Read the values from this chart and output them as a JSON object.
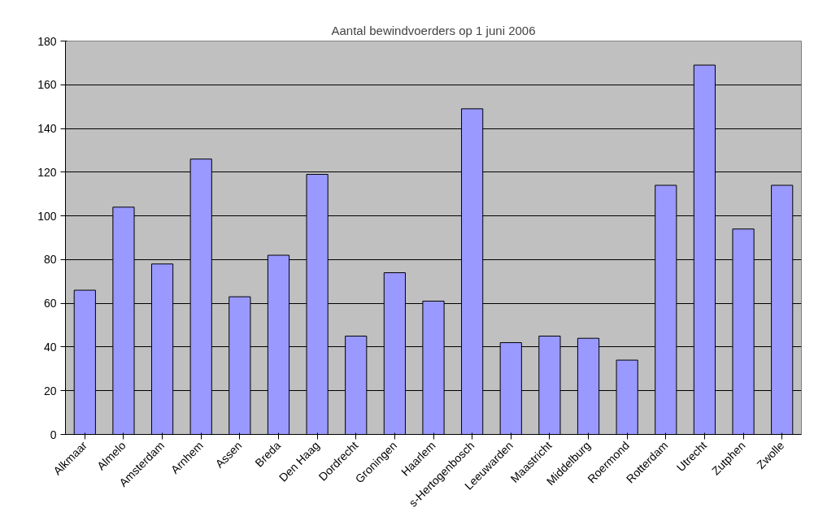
{
  "chart_data": {
    "type": "bar",
    "title": "Aantal bewindvoerders op 1 juni 2006",
    "categories": [
      "Alkmaar",
      "Almelo",
      "Amsterdam",
      "Arnhem",
      "Assen",
      "Breda",
      "Den Haag",
      "Dordrecht",
      "Groningen",
      "Haarlem",
      "s-Hertogenbosch",
      "Leeuwarden",
      "Maastricht",
      "Middelburg",
      "Roermond",
      "Rotterdam",
      "Utrecht",
      "Zutphen",
      "Zwolle"
    ],
    "values": [
      66,
      104,
      78,
      126,
      63,
      82,
      119,
      45,
      74,
      61,
      149,
      42,
      45,
      44,
      34,
      114,
      169,
      94,
      114
    ],
    "color": "#9999ff",
    "ylim": [
      0,
      180
    ],
    "yticks": [
      0,
      20,
      40,
      60,
      80,
      100,
      120,
      140,
      160,
      180
    ],
    "grid": "y"
  }
}
